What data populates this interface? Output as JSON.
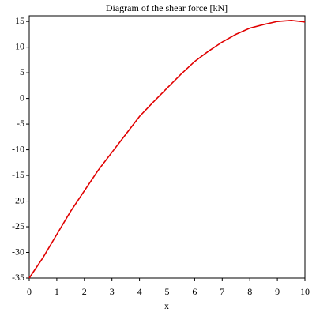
{
  "chart_data": {
    "type": "line",
    "title": "Diagram of the shear force [kN]",
    "x_label": "x",
    "x": [
      0,
      0.5,
      1,
      1.5,
      2,
      2.5,
      3,
      3.5,
      4,
      4.5,
      5,
      5.5,
      6,
      6.5,
      7,
      7.5,
      8,
      8.5,
      9,
      9.5,
      10
    ],
    "series": [
      {
        "color": "#e00000",
        "values": [
          -35,
          -31,
          -26.5,
          -22,
          -18,
          -14,
          -10.5,
          -7,
          -3.5,
          -0.7,
          2,
          4.7,
          7.2,
          9.2,
          11,
          12.5,
          13.7,
          14.4,
          15,
          15.2,
          14.9
        ]
      }
    ],
    "xlim": [
      0,
      10
    ],
    "ylim": [
      -35,
      16.1
    ],
    "xticks": [
      0,
      1,
      2,
      3,
      4,
      5,
      6,
      7,
      8,
      9,
      10
    ],
    "yticks": [
      -35,
      -30,
      -25,
      -20,
      -15,
      -10,
      -5,
      0,
      5,
      10,
      15
    ],
    "grid": false
  }
}
